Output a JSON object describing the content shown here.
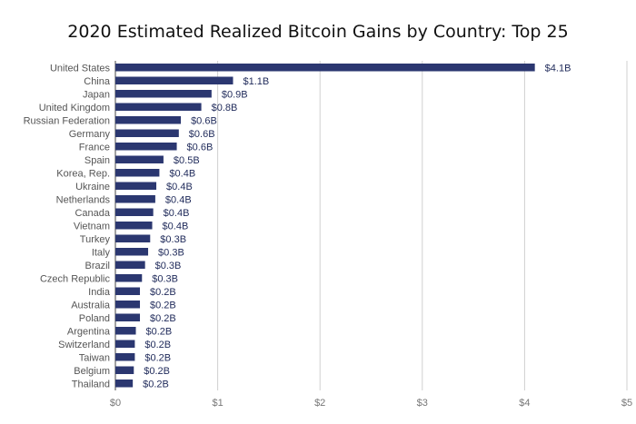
{
  "chart_data": {
    "type": "bar",
    "orientation": "horizontal",
    "title": "2020 Estimated Realized Bitcoin Gains by Country: Top 25",
    "categories": [
      "United States",
      "China",
      "Japan",
      "United Kingdom",
      "Russian Federation",
      "Germany",
      "France",
      "Spain",
      "Korea, Rep.",
      "Ukraine",
      "Netherlands",
      "Canada",
      "Vietnam",
      "Turkey",
      "Italy",
      "Brazil",
      "Czech Republic",
      "India",
      "Australia",
      "Poland",
      "Argentina",
      "Switzerland",
      "Taiwan",
      "Belgium",
      "Thailand"
    ],
    "values": [
      4.1,
      1.15,
      0.94,
      0.84,
      0.64,
      0.62,
      0.6,
      0.47,
      0.43,
      0.4,
      0.39,
      0.37,
      0.36,
      0.34,
      0.32,
      0.29,
      0.26,
      0.24,
      0.24,
      0.24,
      0.2,
      0.19,
      0.19,
      0.18,
      0.17
    ],
    "value_labels": [
      "$4.1B",
      "$1.1B",
      "$0.9B",
      "$0.8B",
      "$0.6B",
      "$0.6B",
      "$0.6B",
      "$0.5B",
      "$0.4B",
      "$0.4B",
      "$0.4B",
      "$0.4B",
      "$0.4B",
      "$0.3B",
      "$0.3B",
      "$0.3B",
      "$0.3B",
      "$0.2B",
      "$0.2B",
      "$0.2B",
      "$0.2B",
      "$0.2B",
      "$0.2B",
      "$0.2B",
      "$0.2B"
    ],
    "x_ticks": [
      "$0",
      "$1",
      "$2",
      "$3",
      "$4",
      "$5"
    ],
    "xlim": [
      0,
      5
    ],
    "grid": "vertical",
    "bar_color": "#2b3770",
    "label_color": "#555555",
    "value_label_color": "#1f2a5a"
  }
}
